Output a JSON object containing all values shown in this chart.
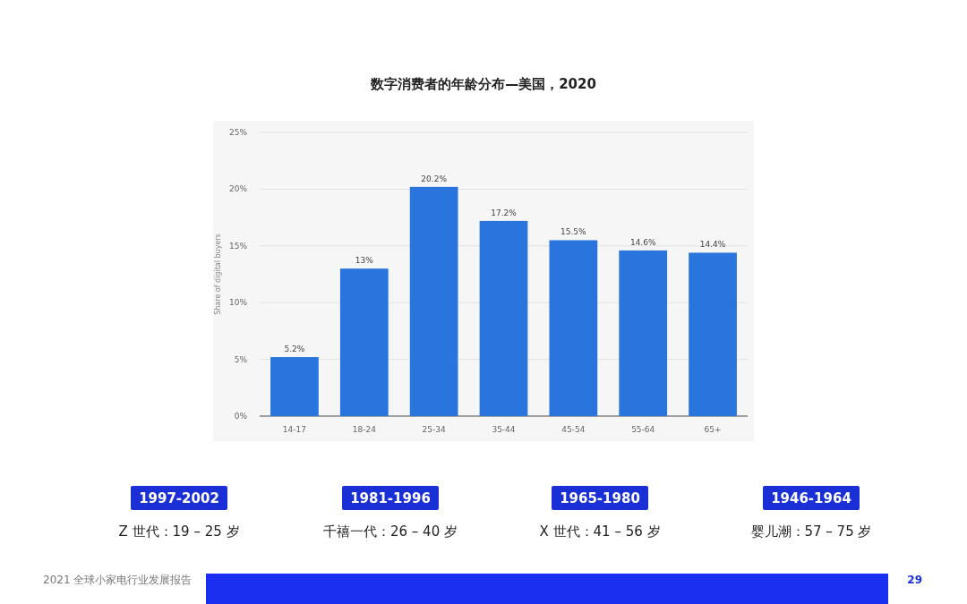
{
  "chart_data": {
    "type": "bar",
    "title": "数字消费者的年龄分布—美国，2020",
    "ylabel": "Share of digital buyers",
    "categories": [
      "14-17",
      "18-24",
      "25-34",
      "35-44",
      "45-54",
      "55-64",
      "65+"
    ],
    "values": [
      5.2,
      13,
      20.2,
      17.2,
      15.5,
      14.6,
      14.4
    ],
    "value_labels": [
      "5.2%",
      "13%",
      "20.2%",
      "17.2%",
      "15.5%",
      "14.6%",
      "14.4%"
    ],
    "color": "#2a74de",
    "ylim": [
      0,
      25
    ],
    "yticks": [
      {
        "value": 0,
        "label": "0%"
      },
      {
        "value": 5,
        "label": "5%"
      },
      {
        "value": 10,
        "label": "10%"
      },
      {
        "value": 15,
        "label": "15%"
      },
      {
        "value": 20,
        "label": "20%"
      },
      {
        "value": 25,
        "label": "25%"
      }
    ],
    "grid": "y",
    "annotations": [
      "1997-2002",
      "Z 世代：19 – 25 岁",
      "1981-1996",
      "千禧一代：26 – 40 岁",
      "1965-1980",
      "X 世代：41 – 56 岁",
      "1946-1964",
      "婴儿潮：57 – 75 岁",
      "2021 全球小家电行业发展报告",
      "29"
    ]
  }
}
